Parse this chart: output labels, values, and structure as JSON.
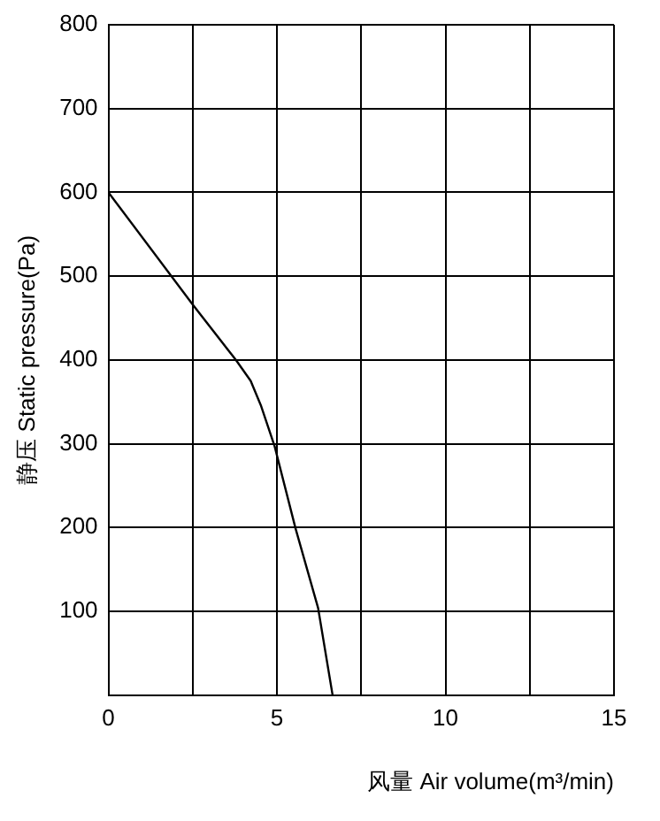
{
  "chart_data": {
    "type": "line",
    "xlabel": "风量 Air volume(m³/min)",
    "ylabel": "静压 Static pressure(Pa)",
    "series": [
      {
        "color": "#000000",
        "x": [
          0,
          2.5,
          3.78,
          4.22,
          4.52,
          4.93,
          5.55,
          6.22,
          6.65
        ],
        "values": [
          600,
          466,
          400,
          375,
          346,
          297,
          199,
          104,
          0
        ]
      }
    ],
    "xlim": [
      0,
      15
    ],
    "xticks": [
      0,
      {
        "value": 2.5,
        "label": null
      },
      5,
      {
        "value": 7.5,
        "label": null
      },
      10,
      {
        "value": 12.5,
        "label": null
      },
      15
    ],
    "ylim": [
      0,
      800
    ],
    "yticks": [
      {
        "value": 0,
        "label": null
      },
      100,
      200,
      300,
      400,
      500,
      600,
      700,
      800
    ],
    "grid": true,
    "legend": false,
    "marker": "none",
    "line_style": "solid"
  }
}
